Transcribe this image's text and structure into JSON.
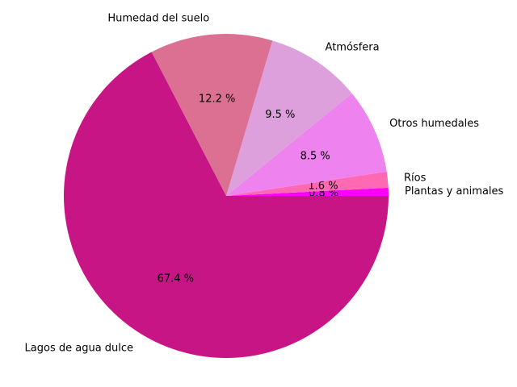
{
  "chart_data": {
    "type": "pie",
    "title": "",
    "start_angle_deg": 0,
    "direction": "counterclockwise",
    "slices": [
      {
        "label": "Plantas y animales",
        "value": 0.8,
        "pct_label": "0.8 %",
        "color": "#ff00ff"
      },
      {
        "label": "Ríos",
        "value": 1.6,
        "pct_label": "1.6 %",
        "color": "#ff69b4"
      },
      {
        "label": "Otros humedales",
        "value": 8.5,
        "pct_label": "8.5 %",
        "color": "#ee82ee"
      },
      {
        "label": "Atmósfera",
        "value": 9.5,
        "pct_label": "9.5 %",
        "color": "#dda0dd"
      },
      {
        "label": "Humedad del suelo",
        "value": 12.2,
        "pct_label": "12.2 %",
        "color": "#db7093"
      },
      {
        "label": "Lagos de agua dulce",
        "value": 67.4,
        "pct_label": "67.4 %",
        "color": "#c71585"
      }
    ]
  }
}
